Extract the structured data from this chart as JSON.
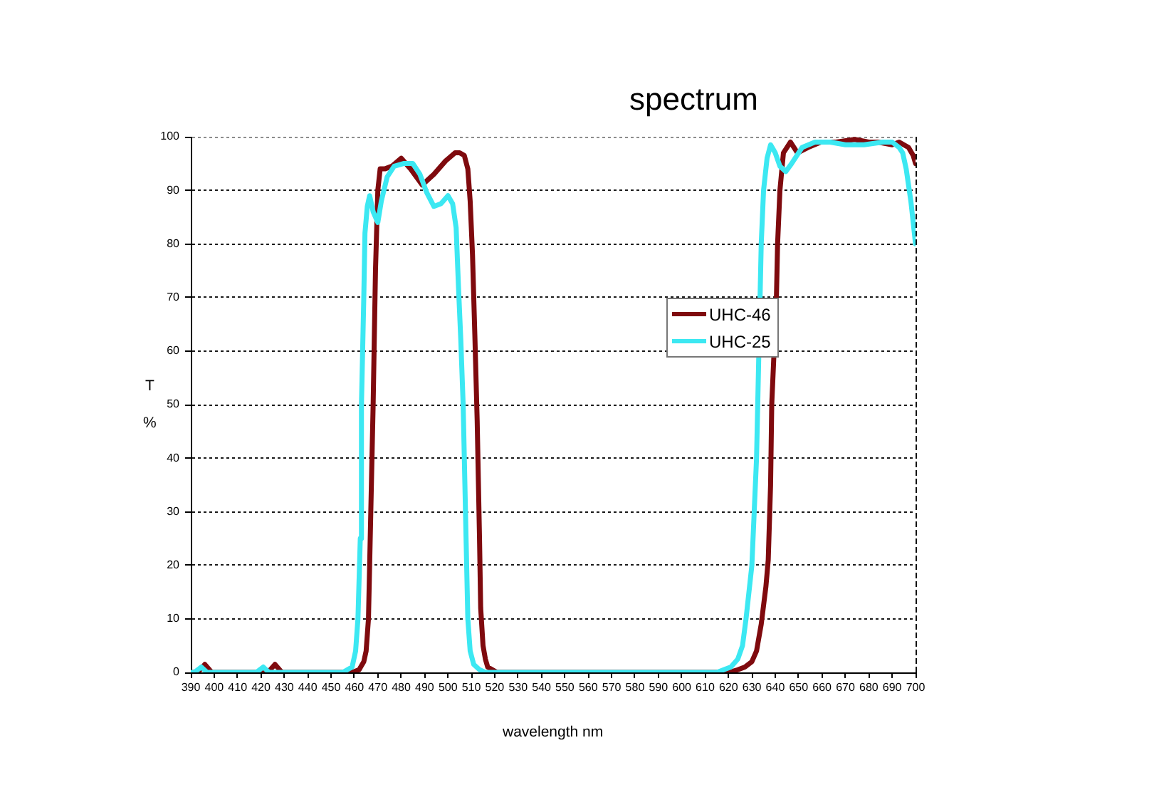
{
  "chart_data": {
    "type": "line",
    "title": "spectrum",
    "xlabel": "wavelength nm",
    "ylabel": "T %",
    "xlim": [
      390,
      700
    ],
    "xticks": [
      390,
      400,
      410,
      420,
      430,
      440,
      450,
      460,
      470,
      480,
      490,
      500,
      510,
      520,
      530,
      540,
      550,
      560,
      570,
      580,
      590,
      600,
      610,
      620,
      630,
      640,
      650,
      660,
      670,
      680,
      690,
      700
    ],
    "ylim": [
      0,
      100
    ],
    "yticks": [
      0,
      10,
      20,
      30,
      40,
      50,
      60,
      70,
      80,
      90,
      100
    ],
    "grid": "y",
    "legend": "right",
    "marker": "none",
    "line_style": "solid",
    "series": [
      {
        "name": "UHC-46",
        "color": "#7f0a0e",
        "x": [
          390,
          393,
          396,
          399,
          402,
          420,
          423,
          426,
          429,
          450,
          459,
          462,
          464,
          465,
          466,
          467,
          468,
          469,
          470,
          471,
          473,
          476,
          480,
          484,
          489,
          494,
          499,
          503,
          505,
          507,
          508.5,
          509.5,
          510.5,
          511.5,
          512.5,
          513.5,
          514,
          515,
          516,
          517,
          519,
          521,
          600,
          620,
          624,
          627,
          630,
          632,
          634,
          636,
          637,
          638,
          638.5,
          640.5,
          641,
          642,
          643.5,
          646.5,
          649.5,
          654,
          659.5,
          666,
          674,
          680,
          684,
          690,
          693,
          695,
          697,
          699,
          700
        ],
        "values": [
          0,
          0,
          1.5,
          0,
          0,
          0,
          0,
          1.5,
          0,
          0,
          0,
          0.5,
          2,
          4,
          10,
          30,
          50,
          75,
          90,
          94,
          94,
          94.5,
          96,
          94,
          91,
          93,
          95.5,
          97,
          97,
          96.5,
          94,
          88,
          78,
          63,
          47,
          25,
          12,
          5,
          2.5,
          1,
          0.5,
          0,
          0,
          0,
          0.5,
          1,
          2,
          4,
          9,
          16,
          21,
          35,
          50,
          70,
          80,
          90,
          97,
          99,
          97,
          98,
          99,
          99,
          99.5,
          99,
          99,
          98.5,
          99,
          98.5,
          98,
          96.5,
          95
        ]
      },
      {
        "name": "UHC-25",
        "color": "#3ce8f2",
        "x": [
          390,
          391.5,
          394.5,
          397,
          400,
          418,
          421,
          423.5,
          440,
          455,
          457,
          459,
          460.5,
          461.5,
          462.5,
          463,
          464,
          464.5,
          465.5,
          466.5,
          468,
          470,
          471.5,
          474,
          477,
          481,
          485,
          488,
          491,
          494,
          497,
          500,
          502,
          503.5,
          504.5,
          505.5,
          506.5,
          507.5,
          508.5,
          509.5,
          511,
          513.5,
          516,
          610,
          615,
          618,
          621,
          624,
          626,
          627.5,
          630,
          631,
          632,
          632.5,
          633,
          633.5,
          634,
          635,
          636.5,
          638,
          640,
          642,
          644.5,
          647,
          651.5,
          657,
          663.5,
          670,
          678,
          686,
          690,
          693,
          694.5,
          696,
          698,
          700
        ],
        "values": [
          0,
          0,
          1,
          0,
          0,
          0,
          1,
          0,
          0,
          0,
          0.5,
          1,
          4,
          10,
          25,
          50,
          70,
          82,
          87,
          89,
          86,
          84,
          88,
          92.5,
          94.5,
          95,
          95,
          93,
          89.5,
          87,
          87.5,
          89,
          87.5,
          83,
          72,
          62,
          50,
          30,
          10,
          4,
          1.5,
          0.5,
          0,
          0,
          0,
          0.5,
          1,
          2.5,
          5,
          10,
          20,
          30,
          40,
          50,
          null,
          70,
          80,
          90,
          96,
          98.5,
          97,
          94.5,
          93.5,
          95,
          98,
          99,
          99,
          98.5,
          98.5,
          99,
          99,
          98,
          97,
          94,
          88,
          80
        ]
      }
    ]
  }
}
